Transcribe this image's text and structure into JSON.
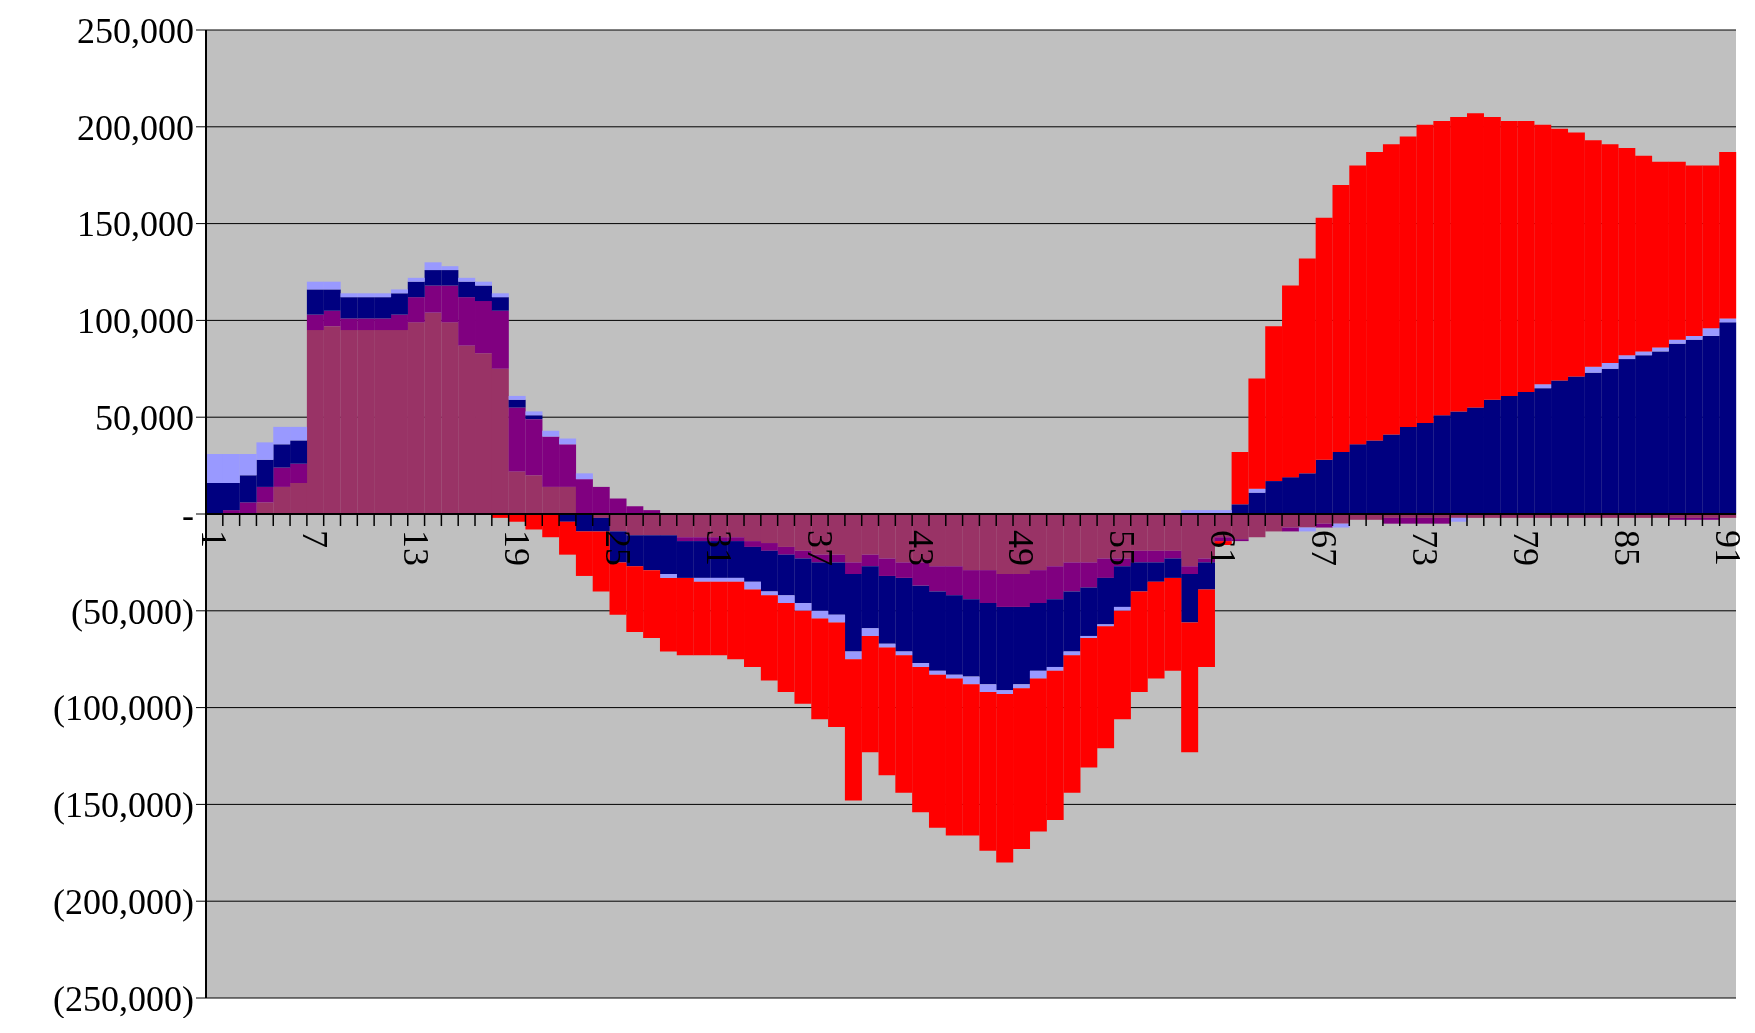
{
  "chart_data": {
    "type": "bar",
    "stacked": true,
    "grid": "y",
    "categories": [
      "1",
      null,
      null,
      null,
      null,
      null,
      "7",
      null,
      null,
      null,
      null,
      null,
      "13",
      null,
      null,
      null,
      null,
      null,
      "19",
      null,
      null,
      null,
      null,
      null,
      "25",
      null,
      null,
      null,
      null,
      null,
      "31",
      null,
      null,
      null,
      null,
      null,
      "37",
      null,
      null,
      null,
      null,
      null,
      "43",
      null,
      null,
      null,
      null,
      null,
      "49",
      null,
      null,
      null,
      null,
      null,
      "55",
      null,
      null,
      null,
      null,
      null,
      "61",
      null,
      null,
      null,
      null,
      null,
      "67",
      null,
      null,
      null,
      null,
      null,
      "73",
      null,
      null,
      null,
      null,
      null,
      "79",
      null,
      null,
      null,
      null,
      null,
      "85",
      null,
      null,
      null,
      null,
      null,
      "91"
    ],
    "ylim": [
      -250000,
      250000
    ],
    "yticks": [
      {
        "value": -250000,
        "label": "(250,000)"
      },
      {
        "value": -200000,
        "label": "(200,000)"
      },
      {
        "value": -150000,
        "label": "(150,000)"
      },
      {
        "value": -100000,
        "label": "(100,000)"
      },
      {
        "value": -50000,
        "label": "(50,000)"
      },
      {
        "value": 0,
        "label": "-"
      },
      {
        "value": 50000,
        "label": "50,000"
      },
      {
        "value": 100000,
        "label": "100,000"
      },
      {
        "value": 150000,
        "label": "150,000"
      },
      {
        "value": 200000,
        "label": "200,000"
      },
      {
        "value": 250000,
        "label": "250,000"
      }
    ],
    "series": [
      {
        "color": "#993366",
        "values": [
          0,
          0,
          0,
          6000,
          14000,
          16000,
          95000,
          97000,
          95000,
          95000,
          95000,
          95000,
          99000,
          104000,
          99000,
          87000,
          83000,
          75000,
          22000,
          20000,
          14000,
          14000,
          0,
          -2000,
          -9000,
          -11000,
          -11000,
          -11000,
          -12000,
          -12000,
          -12000,
          -12000,
          -14000,
          -15000,
          -17000,
          -19000,
          -21000,
          -21000,
          -25000,
          -21000,
          -23000,
          -25000,
          -25000,
          -27000,
          -27000,
          -29000,
          -29000,
          -31000,
          -31000,
          -29000,
          -27000,
          -25000,
          -25000,
          -23000,
          -23000,
          -19000,
          -19000,
          -19000,
          -27000,
          -23000,
          -12000,
          -13000,
          -12000,
          -9000,
          -7000,
          -7000,
          -5000,
          -5000,
          -3000,
          -3000,
          -2000,
          -2000,
          -2000,
          -2000,
          -2000,
          -2000,
          -2000,
          -2000,
          -2000,
          -2000,
          -2000,
          -2000,
          -2000,
          -2000,
          -2000,
          -2000,
          -2000,
          -2000,
          -2000,
          -2000,
          -2000
        ]
      },
      {
        "color": "#800080",
        "values": [
          0,
          2000,
          6000,
          8000,
          10000,
          10000,
          8000,
          8000,
          6000,
          6000,
          6000,
          8000,
          13000,
          14000,
          19000,
          25000,
          27000,
          30000,
          33000,
          29000,
          26000,
          22000,
          18000,
          14000,
          8000,
          4000,
          2000,
          0,
          -2000,
          -2000,
          -2000,
          -2000,
          -3000,
          -4000,
          -4000,
          -4000,
          -4000,
          -4000,
          -6000,
          -6000,
          -9000,
          -8000,
          -12000,
          -13000,
          -15000,
          -15000,
          -17000,
          -17000,
          -17000,
          -17000,
          -17000,
          -15000,
          -13000,
          -10000,
          -4000,
          -6000,
          -6000,
          -4000,
          -4000,
          -2000,
          -2000,
          -1000,
          0,
          0,
          -2000,
          0,
          -2000,
          0,
          0,
          0,
          -3000,
          -3000,
          -3000,
          -3000,
          0,
          0,
          0,
          0,
          0,
          0,
          0,
          0,
          0,
          0,
          0,
          0,
          0,
          -1000,
          -1000,
          -1000,
          0
        ]
      },
      {
        "color": "#000080",
        "values": [
          16000,
          14000,
          14000,
          14000,
          12000,
          12000,
          13000,
          11000,
          11000,
          11000,
          11000,
          11000,
          8000,
          8000,
          8000,
          8000,
          8000,
          7000,
          4000,
          2000,
          0,
          -4000,
          -9000,
          -7000,
          -16000,
          -16000,
          -18000,
          -20000,
          -19000,
          -19000,
          -19000,
          -19000,
          -18000,
          -21000,
          -21000,
          -23000,
          -25000,
          -27000,
          -40000,
          -32000,
          -35000,
          -38000,
          -40000,
          -41000,
          -41000,
          -40000,
          -42000,
          -43000,
          -40000,
          -35000,
          -35000,
          -31000,
          -25000,
          -24000,
          -21000,
          -15000,
          -10000,
          -10000,
          -25000,
          -14000,
          0,
          5000,
          11000,
          17000,
          19000,
          21000,
          28000,
          32000,
          36000,
          38000,
          41000,
          45000,
          47000,
          51000,
          53000,
          55000,
          59000,
          61000,
          63000,
          65000,
          69000,
          71000,
          73000,
          75000,
          80000,
          82000,
          84000,
          88000,
          90000,
          92000,
          99000
        ]
      },
      {
        "color": "#9999ff",
        "values": [
          15000,
          15000,
          11000,
          9000,
          9000,
          7000,
          4000,
          4000,
          2000,
          2000,
          2000,
          2000,
          2000,
          4000,
          2000,
          2000,
          2000,
          2000,
          2000,
          2000,
          3000,
          3000,
          3000,
          0,
          0,
          0,
          0,
          -2000,
          0,
          -2000,
          -2000,
          -2000,
          -4000,
          -2000,
          -4000,
          -4000,
          -4000,
          -4000,
          -4000,
          -4000,
          -2000,
          -2000,
          -2000,
          -2000,
          -2000,
          -4000,
          -4000,
          -2000,
          -2000,
          -4000,
          -2000,
          -2000,
          -1000,
          -1000,
          -2000,
          0,
          0,
          0,
          2000,
          2000,
          2000,
          0,
          2000,
          0,
          0,
          -2000,
          0,
          -2000,
          0,
          0,
          0,
          0,
          0,
          0,
          -2000,
          0,
          0,
          0,
          0,
          2000,
          0,
          0,
          3000,
          3000,
          2000,
          2000,
          2000,
          2000,
          2000,
          4000,
          2000
        ]
      },
      {
        "color": "#ff0000",
        "values": [
          0,
          0,
          0,
          0,
          0,
          0,
          0,
          0,
          0,
          0,
          0,
          0,
          0,
          0,
          0,
          0,
          0,
          -2000,
          -4000,
          -8000,
          -12000,
          -17000,
          -23000,
          -31000,
          -27000,
          -34000,
          -35000,
          -38000,
          -40000,
          -38000,
          -38000,
          -40000,
          -40000,
          -44000,
          -46000,
          -48000,
          -52000,
          -54000,
          -73000,
          -60000,
          -66000,
          -71000,
          -75000,
          -79000,
          -81000,
          -78000,
          -82000,
          -87000,
          -83000,
          -79000,
          -77000,
          -71000,
          -67000,
          -63000,
          -56000,
          -52000,
          -50000,
          -48000,
          -67000,
          -40000,
          -2000,
          27000,
          57000,
          80000,
          99000,
          111000,
          125000,
          138000,
          144000,
          149000,
          150000,
          150000,
          154000,
          152000,
          152000,
          152000,
          146000,
          142000,
          140000,
          134000,
          130000,
          126000,
          117000,
          113000,
          107000,
          101000,
          96000,
          92000,
          88000,
          84000,
          86000
        ]
      }
    ]
  }
}
